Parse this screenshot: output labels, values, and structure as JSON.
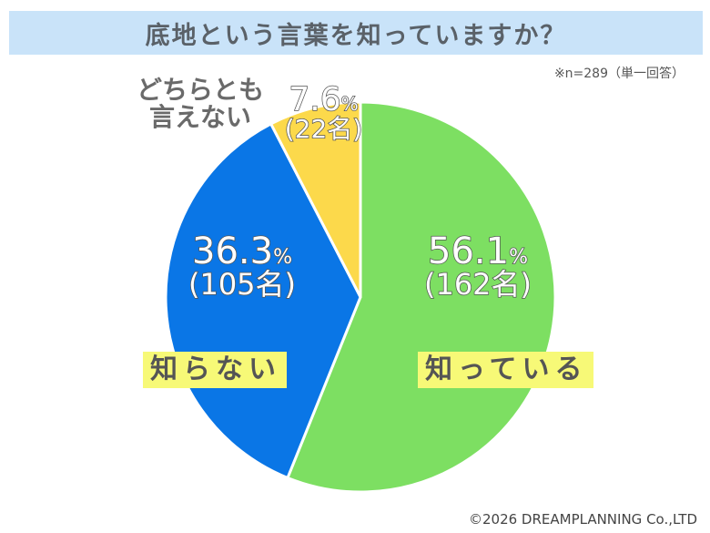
{
  "header": {
    "title": "底地という言葉を知っていますか？"
  },
  "note": "※n=289（単一回答）",
  "copyright": "©2026 DREAMPLANNING Co.,LTD",
  "colors": {
    "title_bg": "#c9e3f9",
    "know": "#7ddf62",
    "dont_know": "#0a76e6",
    "neither": "#fcd94b",
    "label_bg": "#f7f977"
  },
  "slices": [
    {
      "label": "知っている",
      "pct_num": "56.1",
      "unit": "%",
      "count": "(162名)"
    },
    {
      "label": "知らない",
      "pct_num": "36.3",
      "unit": "%",
      "count": "(105名)"
    },
    {
      "label_line1": "どちらとも",
      "label_line2": "言えない",
      "pct_num": "7.6",
      "unit": "%",
      "count": "(22名)"
    }
  ],
  "chart_data": {
    "type": "pie",
    "title": "底地という言葉を知っていますか？",
    "subtitle": "※n=289（単一回答）",
    "categories": [
      "知っている",
      "知らない",
      "どちらとも言えない"
    ],
    "values": [
      56.1,
      36.3,
      7.6
    ],
    "counts": [
      162,
      105,
      22
    ],
    "unit": "%",
    "total_n": 289,
    "start_angle": "12 o'clock, clockwise",
    "colors": [
      "#7ddf62",
      "#0a76e6",
      "#fcd94b"
    ],
    "legend": "none (direct labels)"
  }
}
